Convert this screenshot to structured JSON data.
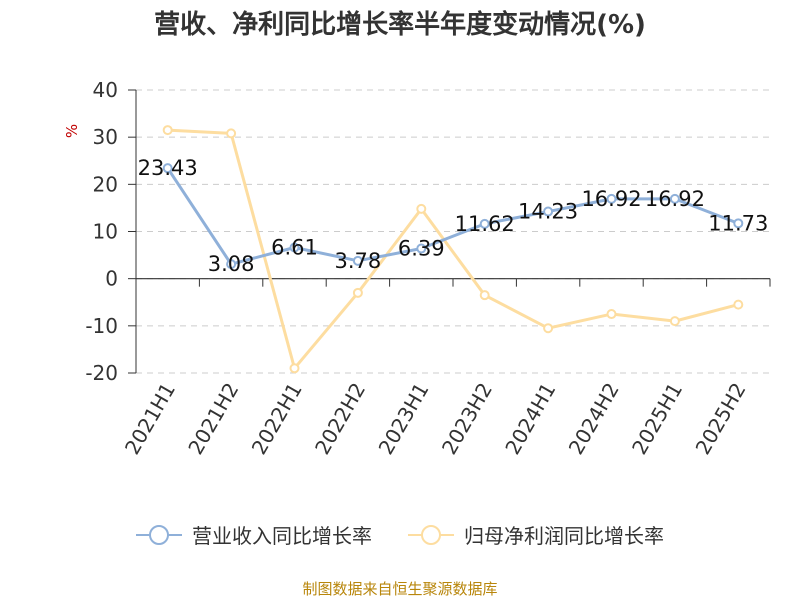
{
  "chart_data": {
    "type": "line",
    "title": "营收、净利同比增长率半年度变动情况(%)",
    "ylabel": "%",
    "categories": [
      "2021H1",
      "2021H2",
      "2022H1",
      "2022H2",
      "2023H1",
      "2023H2",
      "2024H1",
      "2024H2",
      "2025H1",
      "2025H2"
    ],
    "ylim": [
      -20,
      40
    ],
    "yticks": [
      40,
      30,
      20,
      10,
      0,
      -10,
      -20
    ],
    "grid": true,
    "legend_position": "bottom",
    "series": [
      {
        "name": "营业收入同比增长率",
        "color": "#8fb0d9",
        "values": [
          23.43,
          3.08,
          6.61,
          3.78,
          6.39,
          11.62,
          14.23,
          16.92,
          16.92,
          11.73
        ],
        "labels": [
          "23.43",
          "3.08",
          "6.61",
          "3.78",
          "6.39",
          "11.62",
          "14.23",
          "16.92",
          "16.92",
          "11.73"
        ]
      },
      {
        "name": "归母净利润同比增长率",
        "color": "#fddda0",
        "values": [
          31.5,
          30.8,
          -19,
          -3,
          14.8,
          -3.5,
          -10.5,
          -7.5,
          -9,
          -5.5
        ]
      }
    ],
    "source": "制图数据来自恒生聚源数据库"
  }
}
